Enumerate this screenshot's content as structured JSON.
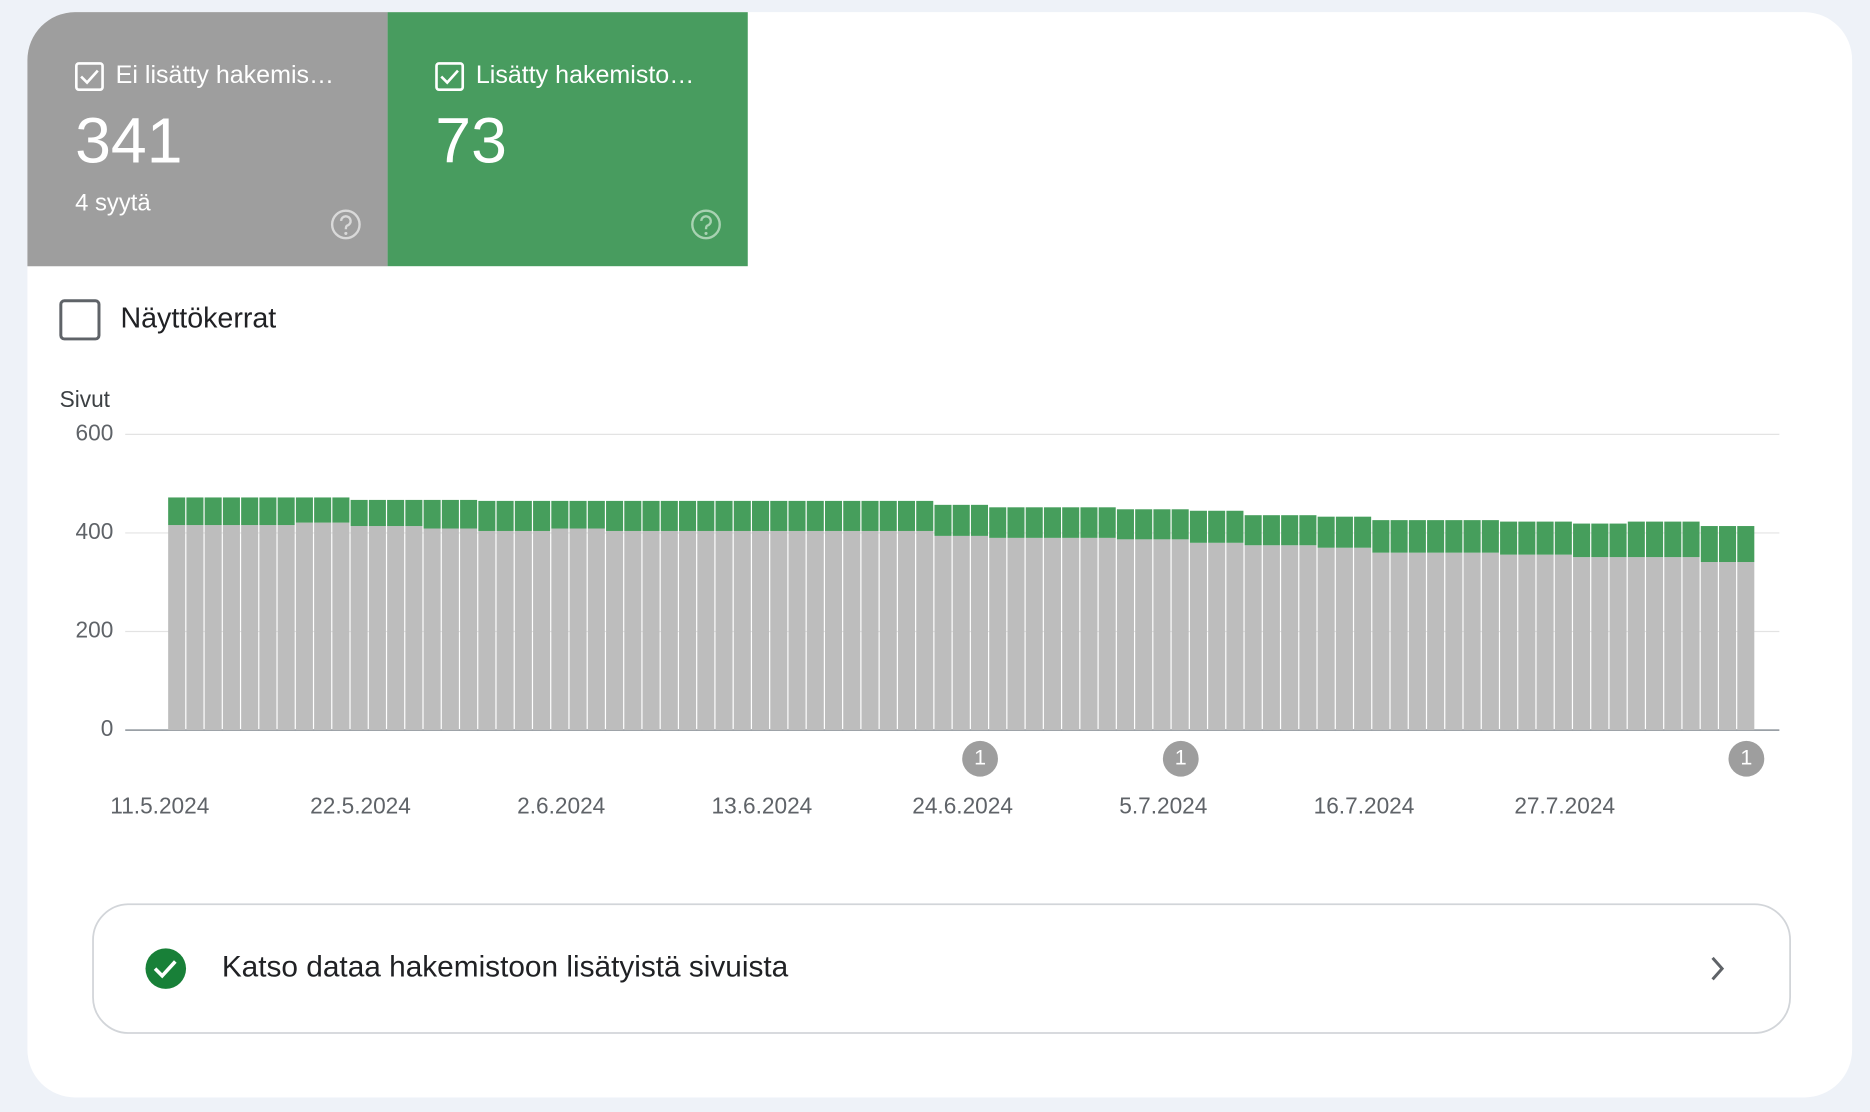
{
  "chart_data": {
    "type": "bar",
    "stacked": true,
    "y_label": "Sivut",
    "toggle_label": "Näyttökerrat",
    "reasons": "4 syytä",
    "link_text": "Katso dataa hakemistoon lisätyistä sivuista",
    "ylim": [
      0,
      600
    ],
    "yticks": [
      0,
      200,
      400,
      600
    ],
    "grid": true,
    "categories": [
      "11.5.2024",
      null,
      null,
      null,
      null,
      null,
      null,
      null,
      null,
      null,
      null,
      "22.5.2024",
      null,
      null,
      null,
      null,
      null,
      null,
      null,
      null,
      null,
      null,
      "2.6.2024",
      null,
      null,
      null,
      null,
      null,
      null,
      null,
      null,
      null,
      null,
      "13.6.2024",
      null,
      null,
      null,
      null,
      null,
      null,
      null,
      null,
      null,
      null,
      "24.6.2024",
      null,
      null,
      null,
      null,
      null,
      null,
      null,
      null,
      null,
      null,
      "5.7.2024",
      null,
      null,
      null,
      null,
      null,
      null,
      null,
      null,
      null,
      null,
      "16.7.2024",
      null,
      null,
      null,
      null,
      null,
      null,
      null,
      null,
      null,
      null,
      "27.7.2024",
      null,
      null,
      null,
      null,
      null,
      null,
      null,
      null,
      null
    ],
    "series": [
      {
        "name": "Ei lisätty hakemis…",
        "color": "#bdbdbd",
        "values": [
          416,
          416,
          416,
          416,
          416,
          416,
          416,
          421,
          421,
          421,
          414,
          414,
          414,
          414,
          409,
          409,
          409,
          404,
          404,
          404,
          404,
          409,
          409,
          409,
          404,
          404,
          404,
          404,
          404,
          404,
          404,
          404,
          404,
          404,
          404,
          404,
          404,
          404,
          404,
          404,
          404,
          404,
          394,
          394,
          394,
          390,
          390,
          390,
          390,
          390,
          390,
          390,
          387,
          387,
          387,
          387,
          380,
          380,
          380,
          375,
          375,
          375,
          375,
          370,
          370,
          370,
          360,
          360,
          360,
          360,
          360,
          360,
          360,
          356,
          356,
          356,
          356,
          351,
          351,
          351,
          351,
          351,
          351,
          351,
          341,
          341,
          341
        ]
      },
      {
        "name": "Lisätty hakemisto…",
        "color": "#469e5c",
        "values": [
          56,
          56,
          56,
          56,
          56,
          56,
          56,
          51,
          51,
          51,
          53,
          53,
          53,
          53,
          58,
          58,
          58,
          61,
          61,
          61,
          61,
          56,
          56,
          56,
          61,
          61,
          61,
          61,
          61,
          61,
          61,
          61,
          61,
          61,
          61,
          61,
          61,
          61,
          61,
          61,
          61,
          61,
          63,
          63,
          63,
          62,
          62,
          62,
          62,
          62,
          62,
          62,
          61,
          61,
          61,
          61,
          65,
          65,
          65,
          61,
          61,
          61,
          61,
          63,
          63,
          63,
          66,
          66,
          66,
          66,
          66,
          66,
          66,
          67,
          67,
          67,
          67,
          68,
          68,
          68,
          72,
          72,
          72,
          72,
          73,
          73,
          73
        ]
      }
    ],
    "annotations": [
      null,
      null,
      null,
      null,
      null,
      null,
      null,
      null,
      null,
      null,
      null,
      null,
      null,
      null,
      null,
      null,
      null,
      null,
      null,
      null,
      null,
      null,
      null,
      null,
      null,
      null,
      null,
      null,
      null,
      null,
      null,
      null,
      null,
      null,
      null,
      null,
      null,
      null,
      null,
      null,
      null,
      null,
      null,
      null,
      1,
      null,
      null,
      null,
      null,
      null,
      null,
      null,
      null,
      null,
      null,
      1,
      null,
      null,
      null,
      null,
      null,
      null,
      null,
      null,
      null,
      null,
      null,
      null,
      null,
      null,
      null,
      null,
      null,
      null,
      null,
      null,
      null,
      null,
      null,
      null,
      null,
      null,
      null,
      null,
      null,
      null,
      1
    ]
  }
}
